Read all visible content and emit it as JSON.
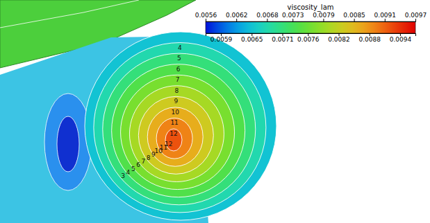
{
  "chart_data": {
    "type": "contour",
    "colorbar_title": "viscosity_lam",
    "colorbar_range": [
      0.0056,
      0.0097
    ],
    "colorbar_ticks": [
      0.0056,
      0.0062,
      0.0068,
      0.0073,
      0.0079,
      0.0085,
      0.0091,
      0.0097
    ],
    "colorbar_ticks_bottom": [
      0.0059,
      0.0065,
      0.0071,
      0.0076,
      0.0082,
      0.0088,
      0.0094
    ],
    "contours": [
      {
        "label": 3,
        "value": 0.0065
      },
      {
        "label": 4,
        "value": 0.0068
      },
      {
        "label": 5,
        "value": 0.0071
      },
      {
        "label": 6,
        "value": 0.0074
      },
      {
        "label": 7,
        "value": 0.0077
      },
      {
        "label": 8,
        "value": 0.008
      },
      {
        "label": 9,
        "value": 0.0083
      },
      {
        "label": 10,
        "value": 0.0086
      },
      {
        "label": 11,
        "value": 0.0089
      },
      {
        "label": 12,
        "value": 0.0092
      }
    ]
  }
}
